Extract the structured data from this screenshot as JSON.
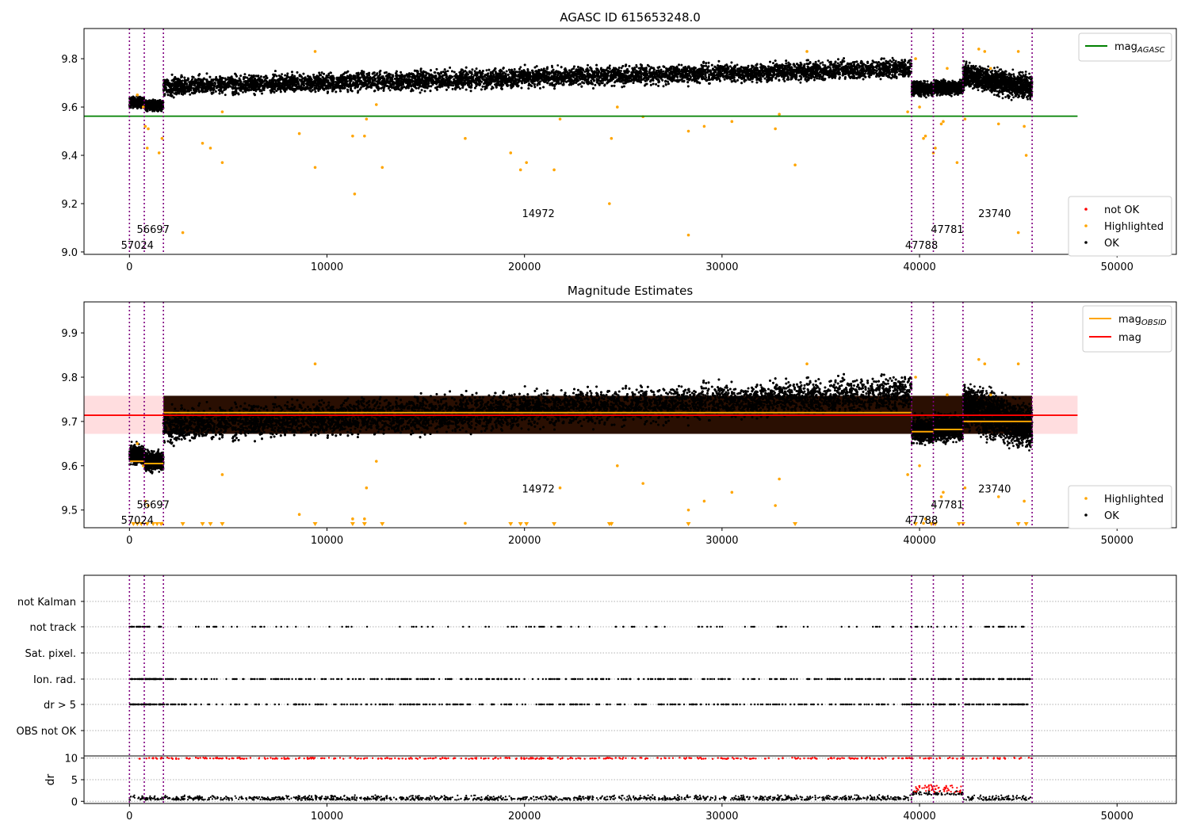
{
  "chart_data": [
    {
      "type": "scatter",
      "title": "AGASC ID 615653248.0",
      "xlim": [
        -2300,
        53000
      ],
      "ylim": [
        8.99,
        9.925
      ],
      "xticks": [
        0,
        10000,
        20000,
        30000,
        40000,
        50000
      ],
      "yticks": [
        9.0,
        9.2,
        9.4,
        9.6,
        9.8
      ],
      "hline": {
        "name": "mag_AGASC",
        "value": 9.562,
        "x_start": -2300,
        "x_end": 48000,
        "color": "#008000"
      },
      "legend_top": [
        {
          "label": "mag",
          "sub": "AGASC",
          "color": "#008000",
          "kind": "line"
        }
      ],
      "legend_bottom": [
        {
          "label": "not OK",
          "color": "#ff0000",
          "kind": "dot"
        },
        {
          "label": "Highlighted",
          "color": "#ffa500",
          "kind": "dot"
        },
        {
          "label": "OK",
          "color": "#000000",
          "kind": "dot"
        }
      ],
      "obsid_boundaries": [
        0,
        750,
        1720,
        39600,
        40700,
        42200,
        45700
      ],
      "obsid_labels": [
        {
          "text": "57024",
          "x": 400,
          "y": 9.03
        },
        {
          "text": "56697",
          "x": 1200,
          "y": 9.095
        },
        {
          "text": "14972",
          "x": 20700,
          "y": 9.16
        },
        {
          "text": "47788",
          "x": 40100,
          "y": 9.03
        },
        {
          "text": "47781",
          "x": 41400,
          "y": 9.095
        },
        {
          "text": "23740",
          "x": 43800,
          "y": 9.16
        }
      ],
      "ok_segments": [
        {
          "x0": 0,
          "x1": 750,
          "center_start": 9.62,
          "center_end": 9.62,
          "amplitude": 0.03
        },
        {
          "x0": 750,
          "x1": 1720,
          "center_start": 9.605,
          "center_end": 9.605,
          "amplitude": 0.03
        },
        {
          "x0": 1720,
          "x1": 39600,
          "center_start": 9.685,
          "center_end": 9.76,
          "amplitude": 0.055
        },
        {
          "x0": 39600,
          "x1": 40700,
          "center_start": 9.675,
          "center_end": 9.675,
          "amplitude": 0.04
        },
        {
          "x0": 40700,
          "x1": 42200,
          "center_start": 9.68,
          "center_end": 9.68,
          "amplitude": 0.04
        },
        {
          "x0": 42200,
          "x1": 45700,
          "center_start": 9.73,
          "center_end": 9.68,
          "amplitude": 0.07
        }
      ],
      "highlighted_points": [
        [
          400,
          9.65
        ],
        [
          700,
          9.6
        ],
        [
          800,
          9.52
        ],
        [
          900,
          9.43
        ],
        [
          950,
          9.51
        ],
        [
          1500,
          9.41
        ],
        [
          1650,
          9.47
        ],
        [
          2700,
          9.08
        ],
        [
          3700,
          9.45
        ],
        [
          4100,
          9.43
        ],
        [
          4700,
          9.37
        ],
        [
          4700,
          9.58
        ],
        [
          8600,
          9.49
        ],
        [
          9400,
          9.83
        ],
        [
          9400,
          9.35
        ],
        [
          11300,
          9.48
        ],
        [
          11400,
          9.24
        ],
        [
          11900,
          9.48
        ],
        [
          12000,
          9.55
        ],
        [
          12500,
          9.61
        ],
        [
          12800,
          9.35
        ],
        [
          17000,
          9.47
        ],
        [
          19300,
          9.41
        ],
        [
          19800,
          9.34
        ],
        [
          20100,
          9.37
        ],
        [
          21500,
          9.34
        ],
        [
          21800,
          9.55
        ],
        [
          24300,
          9.2
        ],
        [
          24400,
          9.47
        ],
        [
          24700,
          9.6
        ],
        [
          26000,
          9.56
        ],
        [
          28300,
          9.5
        ],
        [
          28300,
          9.07
        ],
        [
          29100,
          9.52
        ],
        [
          30500,
          9.54
        ],
        [
          32700,
          9.51
        ],
        [
          32900,
          9.57
        ],
        [
          33700,
          9.36
        ],
        [
          34300,
          9.83
        ],
        [
          39400,
          9.58
        ],
        [
          39800,
          9.8
        ],
        [
          40000,
          9.6
        ],
        [
          40200,
          9.47
        ],
        [
          40300,
          9.48
        ],
        [
          40700,
          9.41
        ],
        [
          40800,
          9.43
        ],
        [
          41100,
          9.53
        ],
        [
          41200,
          9.54
        ],
        [
          41400,
          9.76
        ],
        [
          41900,
          9.37
        ],
        [
          42300,
          9.55
        ],
        [
          43000,
          9.84
        ],
        [
          43300,
          9.83
        ],
        [
          43600,
          9.76
        ],
        [
          44000,
          9.53
        ],
        [
          45000,
          9.08
        ],
        [
          45000,
          9.83
        ],
        [
          45300,
          9.52
        ],
        [
          45400,
          9.4
        ]
      ]
    },
    {
      "type": "scatter",
      "title": "Magnitude Estimates",
      "xlim": [
        -2300,
        53000
      ],
      "ylim": [
        9.46,
        9.97
      ],
      "xticks": [
        0,
        10000,
        20000,
        30000,
        40000,
        50000
      ],
      "yticks": [
        9.5,
        9.6,
        9.7,
        9.8,
        9.9
      ],
      "mag": {
        "value": 9.714,
        "band": [
          9.672,
          9.758
        ],
        "x_start": -2300,
        "x_end": 48000,
        "line_color": "#ff0000",
        "band_color": "#ffdddf"
      },
      "mag_obsid": [
        {
          "x0": 0,
          "x1": 750,
          "value": 9.61
        },
        {
          "x0": 750,
          "x1": 1720,
          "value": 9.605
        },
        {
          "x0": 1720,
          "x1": 39600,
          "value": 9.72
        },
        {
          "x0": 39600,
          "x1": 40700,
          "value": 9.677
        },
        {
          "x0": 40700,
          "x1": 42200,
          "value": 9.682
        },
        {
          "x0": 42200,
          "x1": 45700,
          "value": 9.7
        }
      ],
      "legend_top": [
        {
          "label": "mag",
          "sub": "OBSID",
          "color": "#ffa500",
          "kind": "line"
        },
        {
          "label": "mag",
          "sub": "",
          "color": "#ff0000",
          "kind": "line"
        }
      ],
      "legend_bottom": [
        {
          "label": "Highlighted",
          "color": "#ffa500",
          "kind": "dot"
        },
        {
          "label": "OK",
          "color": "#000000",
          "kind": "dot"
        }
      ],
      "obsid_labels": [
        {
          "text": "57024",
          "x": 400,
          "y": 9.478
        },
        {
          "text": "56697",
          "x": 1200,
          "y": 9.513
        },
        {
          "text": "14972",
          "x": 20700,
          "y": 9.549
        },
        {
          "text": "47788",
          "x": 40100,
          "y": 9.478
        },
        {
          "text": "47781",
          "x": 41400,
          "y": 9.513
        },
        {
          "text": "23740",
          "x": 43800,
          "y": 9.549
        }
      ],
      "lower_limit_markers": [
        [
          200,
          400,
          600,
          900,
          1200,
          1400,
          1600,
          2700,
          3700,
          4100,
          4700,
          9400,
          11300,
          11900,
          12800,
          19300,
          19800,
          20100,
          21500,
          24300,
          24400,
          28300,
          33700,
          39800,
          40600,
          40800,
          42000,
          42200,
          45000,
          45400
        ]
      ]
    },
    {
      "type": "scatter",
      "categories": [
        "not Kalman",
        "not track",
        "Sat. pixel.",
        "Ion. rad.",
        "dr > 5",
        "OBS not OK"
      ],
      "dr_panel": {
        "ylabel": "dr",
        "yticks": [
          0,
          5,
          10
        ],
        "ylim": [
          -0.5,
          10.5
        ]
      },
      "xlim": [
        -2300,
        53000
      ],
      "xticks": [
        0,
        10000,
        20000,
        30000,
        40000,
        50000
      ]
    }
  ]
}
